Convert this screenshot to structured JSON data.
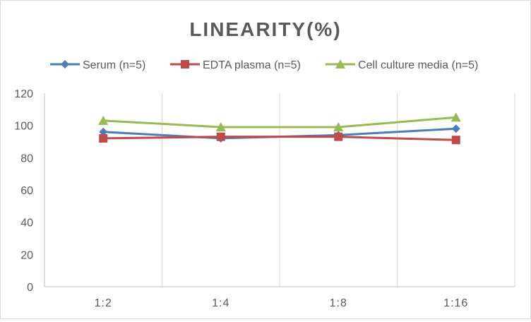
{
  "chart_data": {
    "type": "line",
    "title": "LINEARITY(%)",
    "xlabel": "",
    "ylabel": "",
    "categories": [
      "1:2",
      "1:4",
      "1:8",
      "1:16"
    ],
    "ylim": [
      0,
      120
    ],
    "yticks": [
      0,
      20,
      40,
      60,
      80,
      100,
      120
    ],
    "grid": "vertical",
    "legend_position": "top",
    "series": [
      {
        "name": "Serum (n=5)",
        "values": [
          96,
          92,
          94,
          98
        ],
        "color": "#4a7ebb",
        "marker": "diamond"
      },
      {
        "name": "EDTA plasma (n=5)",
        "values": [
          92,
          93,
          93,
          91
        ],
        "color": "#be4b48",
        "marker": "square"
      },
      {
        "name": "Cell culture media (n=5)",
        "values": [
          103,
          99,
          99,
          105
        ],
        "color": "#98b954",
        "marker": "triangle"
      }
    ]
  }
}
